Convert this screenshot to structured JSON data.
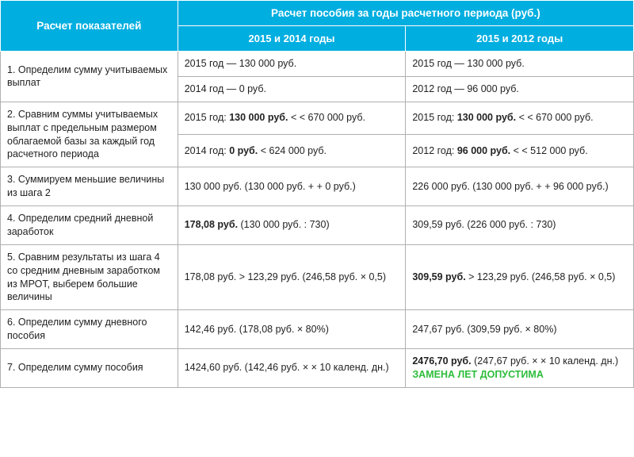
{
  "header": {
    "left": "Расчет показателей",
    "right": "Расчет пособия за годы расчетного периода (руб.)",
    "sub_left": "2015 и 2014 годы",
    "sub_right": "2015 и 2012 годы"
  },
  "rows": {
    "r1": {
      "label": "1. Определим сумму учитываемых  выплат",
      "a1": "2015 год — 130 000 руб.",
      "a2": "2014 год — 0 руб.",
      "b1": "2015 год — 130 000 руб.",
      "b2": "2012 год — 96 000 руб."
    },
    "r2": {
      "label": "2. Сравним суммы учитываемых выплат с предельным размером облагаемой базы за каждый год расчетного периода",
      "a1_pre": "2015 год: ",
      "a1_bold": "130 000 руб.",
      "a1_post": " < < 670 000 руб.",
      "a2_pre": "2014 год: ",
      "a2_bold": "0 руб.",
      "a2_post": " < 624 000 руб.",
      "b1_pre": "2015 год: ",
      "b1_bold": "130 000 руб.",
      "b1_post": " < < 670 000 руб.",
      "b2_pre": "2012 год: ",
      "b2_bold": "96 000 руб.",
      "b2_post": " < < 512 000 руб."
    },
    "r3": {
      "label": "3. Суммируем меньшие величины из шага 2",
      "a": "130 000 руб. (130 000 руб. + + 0 руб.)",
      "b": "226 000 руб. (130 000 руб. + + 96 000 руб.)"
    },
    "r4": {
      "label": "4. Определим средний дневной заработок",
      "a_bold": "178,08 руб.",
      "a_post": " (130 000 руб. : 730)",
      "b": "309,59 руб. (226 000 руб. : 730)"
    },
    "r5": {
      "label": "5. Сравним результаты из шага 4 со средним дневным заработком из МРОТ, выберем большие величины",
      "a": "178,08 руб. > 123,29 руб. (246,58 руб. × 0,5)",
      "b_bold": "309,59 руб.",
      "b_post": " > 123,29 руб. (246,58 руб. × 0,5)"
    },
    "r6": {
      "label": "6. Определим сумму дневного пособия",
      "a": "142,46 руб. (178,08 руб. × 80%)",
      "b": "247,67 руб. (309,59 руб. × 80%)"
    },
    "r7": {
      "label": "7. Определим сумму пособия",
      "a": "1424,60 руб. (142,46 руб. × × 10 календ. дн.)",
      "b_bold": "2476,70 руб.",
      "b_post": " (247,67 руб. × × 10 календ. дн.)",
      "b_green": "ЗАМЕНА ЛЕТ ДОПУСТИМА"
    }
  },
  "colors": {
    "header_bg": "#00aee0",
    "header_fg": "#ffffff",
    "border": "#b0b0b0",
    "text": "#222222",
    "green": "#2dbd3a"
  }
}
